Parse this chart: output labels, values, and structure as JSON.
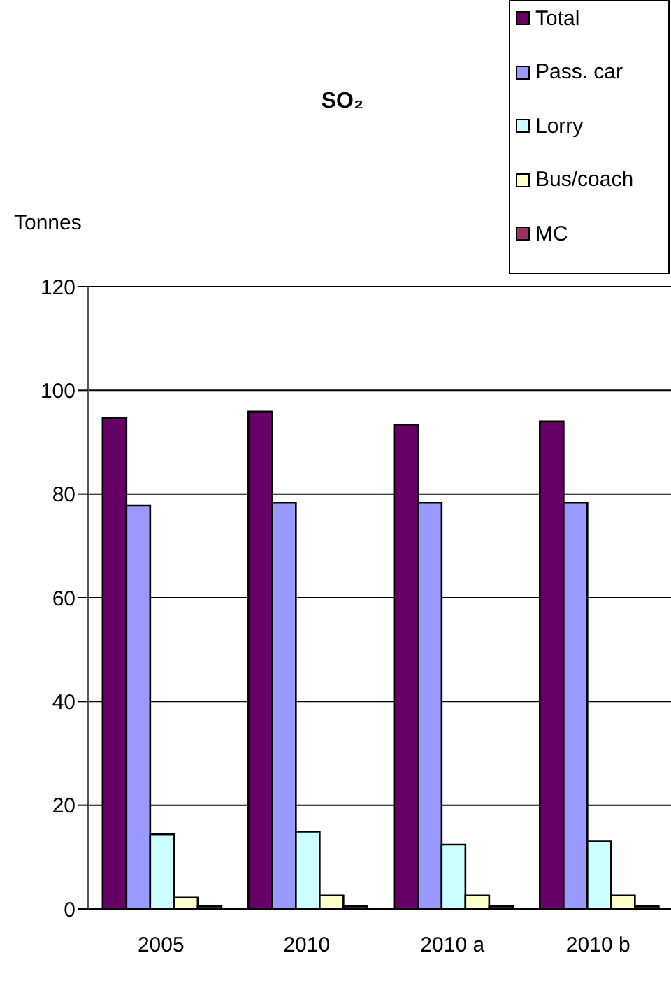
{
  "chart_data": {
    "type": "bar",
    "title": "SO₂",
    "ylabel": "Tonnes",
    "categories": [
      "2005",
      "2010",
      "2010 a",
      "2010 b"
    ],
    "series": [
      {
        "name": "Total",
        "color": "#660066",
        "values": [
          94.6,
          95.9,
          93.4,
          94.0
        ]
      },
      {
        "name": "Pass. car",
        "color": "#9999ff",
        "values": [
          77.8,
          78.3,
          78.3,
          78.3
        ]
      },
      {
        "name": "Lorry",
        "color": "#ccffff",
        "values": [
          14.4,
          14.9,
          12.4,
          13.0
        ]
      },
      {
        "name": "Bus/coach",
        "color": "#ffffcc",
        "values": [
          2.2,
          2.6,
          2.6,
          2.6
        ]
      },
      {
        "name": "MC",
        "color": "#993366",
        "values": [
          0.5,
          0.5,
          0.5,
          0.5
        ]
      }
    ],
    "ylim": [
      0,
      120
    ],
    "yticks": [
      0,
      20,
      40,
      60,
      80,
      100,
      120
    ],
    "grid": "y",
    "legend": "top right"
  }
}
